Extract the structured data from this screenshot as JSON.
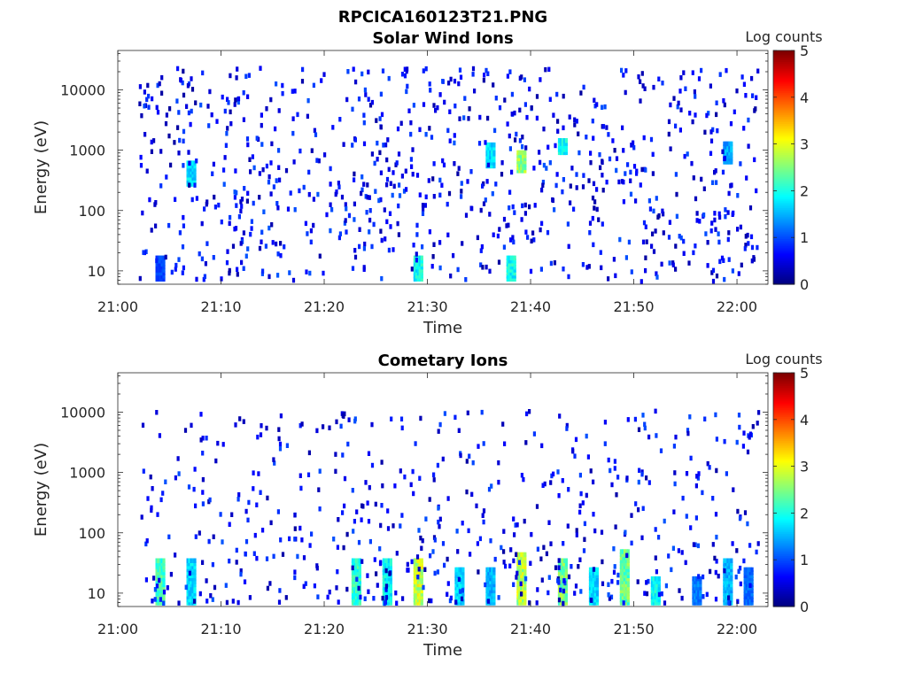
{
  "figure": {
    "title": "RPCICA160123T21.PNG"
  },
  "chart_data": [
    {
      "type": "heatmap",
      "title": "Solar Wind Ions",
      "xlabel": "Time",
      "ylabel": "Energy (eV)",
      "x_ticks": [
        "21:00",
        "21:10",
        "21:20",
        "21:30",
        "21:40",
        "21:50",
        "22:00"
      ],
      "xlim_minutes": [
        0,
        63
      ],
      "y_scale": "log",
      "y_ticks": [
        10,
        100,
        1000,
        10000
      ],
      "ylim": [
        6,
        45000
      ],
      "colorbar": {
        "label": "Log counts",
        "ticks": [
          0,
          1,
          2,
          3,
          4,
          5
        ],
        "range": [
          0,
          5
        ],
        "colormap": "jet"
      },
      "grid": false,
      "dominant_bands": [
        {
          "time": "21:04",
          "energy_eV": [
            8,
            20
          ],
          "log_counts": 1.0
        },
        {
          "time": "21:07",
          "energy_eV": [
            300,
            700
          ],
          "log_counts": 1.8
        },
        {
          "time": "21:29",
          "energy_eV": [
            8,
            20
          ],
          "log_counts": 2.0
        },
        {
          "time": "21:36",
          "energy_eV": [
            600,
            1400
          ],
          "log_counts": 1.8
        },
        {
          "time": "21:38",
          "energy_eV": [
            8,
            20
          ],
          "log_counts": 2.0
        },
        {
          "time": "21:39",
          "energy_eV": [
            500,
            1000
          ],
          "log_counts": 2.7
        },
        {
          "time": "21:43",
          "energy_eV": [
            1000,
            1600
          ],
          "log_counts": 2.0
        },
        {
          "time": "21:59",
          "energy_eV": [
            700,
            1400
          ],
          "log_counts": 1.5
        }
      ]
    },
    {
      "type": "heatmap",
      "title": "Cometary Ions",
      "xlabel": "Time",
      "ylabel": "Energy (eV)",
      "x_ticks": [
        "21:00",
        "21:10",
        "21:20",
        "21:30",
        "21:40",
        "21:50",
        "22:00"
      ],
      "xlim_minutes": [
        0,
        63
      ],
      "y_scale": "log",
      "y_ticks": [
        10,
        100,
        1000,
        10000
      ],
      "ylim": [
        6,
        45000
      ],
      "colorbar": {
        "label": "Log counts",
        "ticks": [
          0,
          1,
          2,
          3,
          4,
          5
        ],
        "range": [
          0,
          5
        ],
        "colormap": "jet"
      },
      "grid": false,
      "dominant_bands": [
        {
          "time": "21:04",
          "energy_eV": [
            6,
            40
          ],
          "log_counts": 2.3
        },
        {
          "time": "21:07",
          "energy_eV": [
            6,
            40
          ],
          "log_counts": 1.8
        },
        {
          "time": "21:23",
          "energy_eV": [
            6,
            40
          ],
          "log_counts": 2.2
        },
        {
          "time": "21:26",
          "energy_eV": [
            6,
            40
          ],
          "log_counts": 2.0
        },
        {
          "time": "21:29",
          "energy_eV": [
            6,
            40
          ],
          "log_counts": 3.0
        },
        {
          "time": "21:33",
          "energy_eV": [
            6,
            30
          ],
          "log_counts": 1.8
        },
        {
          "time": "21:36",
          "energy_eV": [
            6,
            30
          ],
          "log_counts": 1.6
        },
        {
          "time": "21:39",
          "energy_eV": [
            6,
            50
          ],
          "log_counts": 2.9
        },
        {
          "time": "21:43",
          "energy_eV": [
            6,
            40
          ],
          "log_counts": 2.6
        },
        {
          "time": "21:46",
          "energy_eV": [
            6,
            30
          ],
          "log_counts": 1.8
        },
        {
          "time": "21:49",
          "energy_eV": [
            6,
            60
          ],
          "log_counts": 2.5
        },
        {
          "time": "21:52",
          "energy_eV": [
            6,
            20
          ],
          "log_counts": 2.0
        },
        {
          "time": "21:56",
          "energy_eV": [
            6,
            20
          ],
          "log_counts": 1.3
        },
        {
          "time": "21:59",
          "energy_eV": [
            6,
            40
          ],
          "log_counts": 1.6
        },
        {
          "time": "22:01",
          "energy_eV": [
            6,
            30
          ],
          "log_counts": 1.2
        }
      ]
    }
  ]
}
